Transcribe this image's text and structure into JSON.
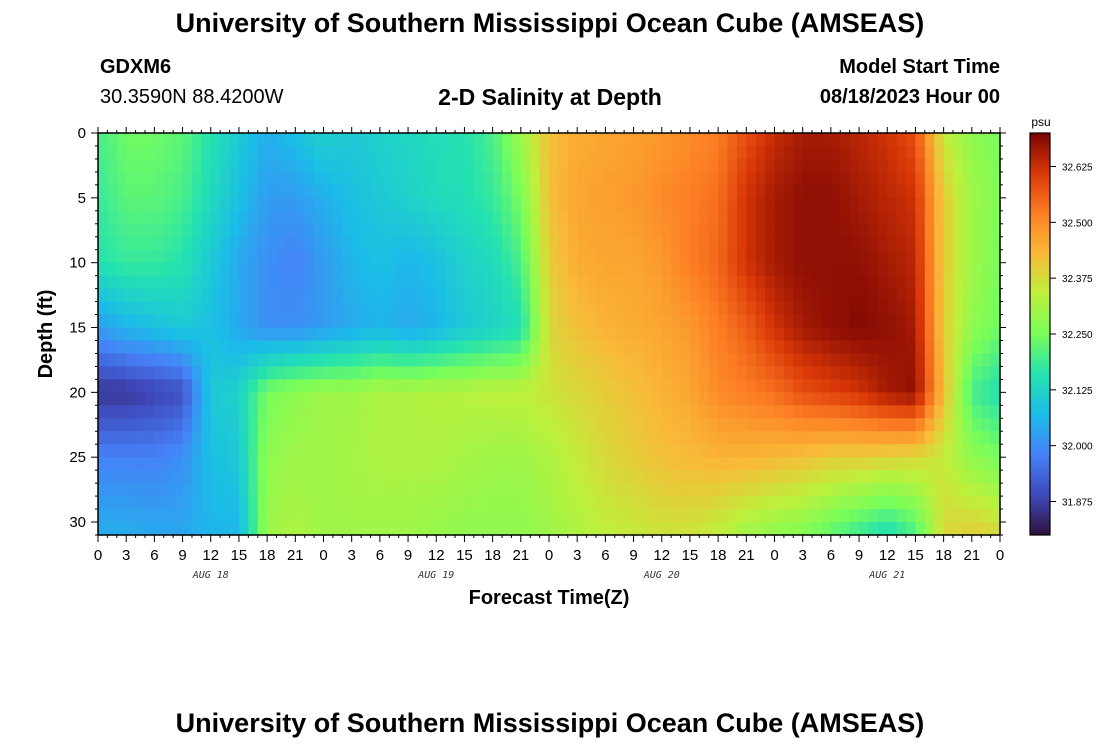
{
  "header": {
    "title": "University of Southern Mississippi Ocean Cube (AMSEAS)",
    "station_id": "GDXM6",
    "station_coords": "30.3590N  88.4200W",
    "chart_title": "2-D Salinity at Depth",
    "model_start_label": "Model Start Time",
    "model_start_value": "08/18/2023 Hour 00"
  },
  "footer": {
    "title": "University of Southern Mississippi Ocean Cube (AMSEAS)"
  },
  "chart_data": {
    "type": "heatmap",
    "title": "2-D Salinity at Depth",
    "xlabel": "Forecast Time(Z)",
    "ylabel": "Depth (ft)",
    "x_tick_labels": [
      "0",
      "3",
      "6",
      "9",
      "12",
      "15",
      "18",
      "21",
      "0",
      "3",
      "6",
      "9",
      "12",
      "15",
      "18",
      "21",
      "0",
      "3",
      "6",
      "9",
      "12",
      "15",
      "18",
      "21",
      "0",
      "3",
      "6",
      "9",
      "12",
      "15",
      "18",
      "21",
      "0"
    ],
    "x_day_labels": [
      "AUG 18",
      "AUG 19",
      "AUG 20",
      "AUG 21"
    ],
    "xlim_hours": [
      0,
      96
    ],
    "ylim": [
      0,
      31
    ],
    "y_inverted": true,
    "y_ticks": [
      0,
      5,
      10,
      15,
      20,
      25,
      30
    ],
    "colorbar": {
      "unit": "psu",
      "min": 31.8,
      "max": 32.7,
      "ticks": [
        31.875,
        32.0,
        32.125,
        32.25,
        32.375,
        32.5,
        32.625
      ],
      "tick_labels": [
        "31.875",
        "32.000",
        "32.125",
        "32.250",
        "32.375",
        "32.500",
        "32.625"
      ]
    },
    "depths_ft": [
      0,
      5,
      10,
      15,
      20,
      25,
      31
    ],
    "times_hours": [
      0,
      3,
      6,
      9,
      12,
      15,
      18,
      21,
      24,
      27,
      30,
      33,
      36,
      39,
      42,
      45,
      48,
      51,
      54,
      57,
      60,
      63,
      66,
      69,
      72,
      75,
      78,
      81,
      84,
      87,
      90,
      93,
      96
    ],
    "salinity_psu": [
      [
        32.2,
        32.24,
        32.24,
        32.22,
        32.16,
        32.1,
        32.05,
        32.08,
        32.12,
        32.1,
        32.12,
        32.13,
        32.15,
        32.16,
        32.2,
        32.3,
        32.42,
        32.45,
        32.46,
        32.47,
        32.48,
        32.5,
        32.52,
        32.58,
        32.63,
        32.66,
        32.66,
        32.64,
        32.62,
        32.58,
        32.35,
        32.28,
        32.25
      ],
      [
        32.18,
        32.22,
        32.22,
        32.2,
        32.14,
        32.08,
        32.02,
        32.02,
        32.05,
        32.08,
        32.1,
        32.12,
        32.14,
        32.15,
        32.18,
        32.25,
        32.42,
        32.46,
        32.47,
        32.48,
        32.5,
        32.52,
        32.54,
        32.62,
        32.66,
        32.68,
        32.68,
        32.66,
        32.64,
        32.62,
        32.4,
        32.3,
        32.26
      ],
      [
        32.16,
        32.18,
        32.18,
        32.16,
        32.1,
        32.04,
        32.0,
        31.98,
        32.02,
        32.06,
        32.08,
        32.06,
        32.08,
        32.12,
        32.14,
        32.2,
        32.4,
        32.45,
        32.46,
        32.46,
        32.48,
        32.52,
        32.55,
        32.62,
        32.66,
        32.68,
        32.68,
        32.68,
        32.66,
        32.64,
        32.4,
        32.3,
        32.25
      ],
      [
        32.02,
        32.06,
        32.08,
        32.1,
        32.08,
        32.04,
        32.0,
        32.0,
        32.02,
        32.04,
        32.06,
        32.04,
        32.06,
        32.1,
        32.12,
        32.15,
        32.38,
        32.42,
        32.44,
        32.45,
        32.46,
        32.48,
        32.52,
        32.56,
        32.62,
        32.66,
        32.68,
        32.69,
        32.68,
        32.66,
        32.4,
        32.28,
        32.24
      ],
      [
        31.86,
        31.86,
        31.88,
        31.9,
        32.1,
        32.12,
        32.25,
        32.28,
        32.3,
        32.3,
        32.32,
        32.32,
        32.33,
        32.33,
        32.34,
        32.34,
        32.36,
        32.38,
        32.4,
        32.42,
        32.44,
        32.46,
        32.5,
        32.52,
        32.54,
        32.58,
        32.6,
        32.62,
        32.66,
        32.68,
        32.42,
        32.2,
        32.15
      ],
      [
        31.98,
        31.98,
        31.98,
        32.0,
        32.08,
        32.1,
        32.28,
        32.3,
        32.3,
        32.31,
        32.32,
        32.32,
        32.32,
        32.31,
        32.3,
        32.3,
        32.32,
        32.35,
        32.38,
        32.4,
        32.42,
        32.43,
        32.44,
        32.44,
        32.43,
        32.42,
        32.4,
        32.4,
        32.39,
        32.38,
        32.35,
        32.28,
        32.25
      ],
      [
        32.05,
        32.05,
        32.04,
        32.04,
        32.06,
        32.06,
        32.3,
        32.32,
        32.3,
        32.3,
        32.3,
        32.3,
        32.29,
        32.28,
        32.28,
        32.28,
        32.3,
        32.32,
        32.34,
        32.35,
        32.36,
        32.36,
        32.34,
        32.3,
        32.28,
        32.26,
        32.22,
        32.18,
        32.14,
        32.2,
        32.38,
        32.4,
        32.38
      ]
    ]
  }
}
